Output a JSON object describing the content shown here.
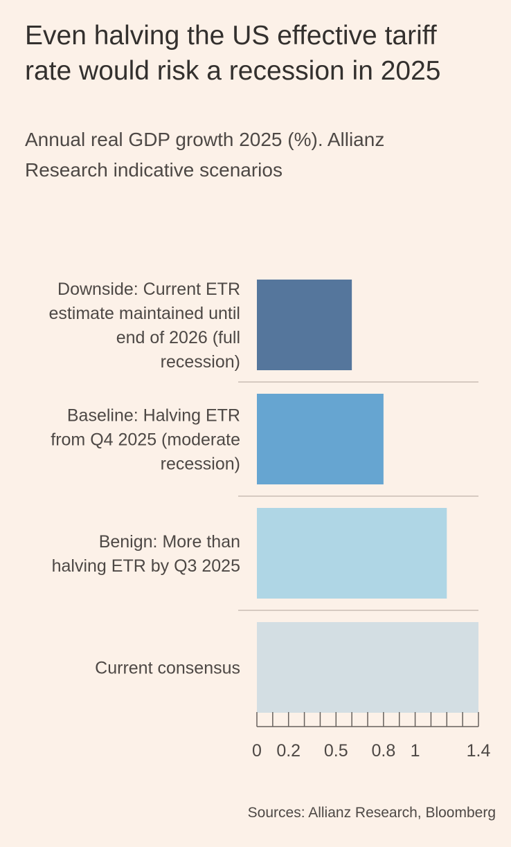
{
  "title": "Even halving the US effective tariff rate would risk a recession in 2025",
  "subtitle": "Annual real GDP growth 2025 (%). Allianz Research indicative scenarios",
  "source": "Sources: Allianz Research, Bloomberg",
  "chart_data": {
    "type": "bar",
    "orientation": "horizontal",
    "categories": [
      "Downside: Current ETR estimate maintained until end of 2026 (full recession)",
      "Baseline: Halving ETR from Q4 2025 (moderate recession)",
      "Benign: More than halving ETR by Q3 2025",
      "Current consensus"
    ],
    "category_lines": [
      [
        "Downside: Current ETR",
        "estimate maintained until",
        "end of 2026 (full",
        "recession)"
      ],
      [
        "Baseline: Halving ETR",
        "from Q4 2025 (moderate",
        "recession)"
      ],
      [
        "Benign: More than",
        "halving ETR by Q3 2025"
      ],
      [
        "Current consensus"
      ]
    ],
    "values": [
      0.6,
      0.8,
      1.2,
      1.4
    ],
    "colors": [
      "#55769c",
      "#66a5d1",
      "#afd6e5",
      "#d3dee3"
    ],
    "xlim": [
      0,
      1.4
    ],
    "xticks": [
      0,
      0.2,
      0.5,
      0.8,
      1,
      1.4
    ],
    "xtick_labels": [
      "0",
      "0.2",
      "0.5",
      "0.8",
      "1",
      "1.4"
    ],
    "minor_tick_step": 0.1,
    "xlabel": "",
    "ylabel": "",
    "grid": false
  }
}
